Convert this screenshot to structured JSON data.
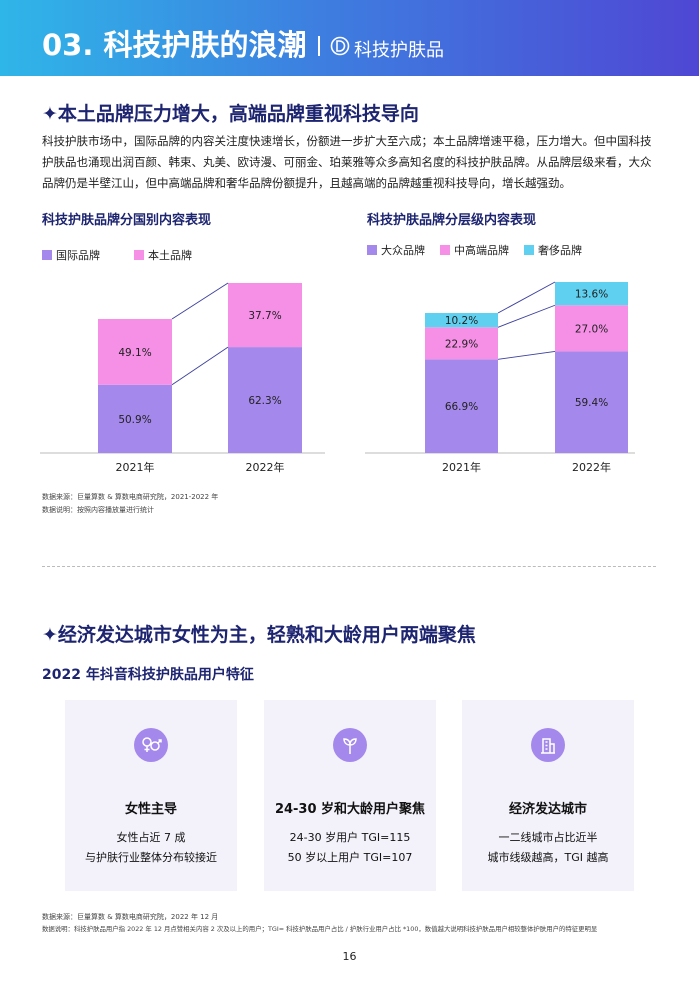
{
  "header": {
    "title": "03. 科技护肤的浪潮",
    "brand": "科技护肤品"
  },
  "section1": {
    "title": "✦本土品牌压力增大，高端品牌重视科技导向",
    "paragraph": "科技护肤市场中，国际品牌的内容关注度快速增长，份额进一步扩大至六成；本土品牌增速平稳，压力增大。但中国科技护肤品也涌现出润百颜、韩束、丸美、欧诗漫、可丽金、珀莱雅等众多高知名度的科技护肤品牌。从品牌层级来看，大众品牌仍是半壁江山，但中高端品牌和奢华品牌份额提升，且越高端的品牌越重视科技导向，增长越强劲。"
  },
  "chart_data": [
    {
      "type": "stacked_bar",
      "title": "科技护肤品牌分国别内容表现",
      "categories": [
        "2021年",
        "2022年"
      ],
      "series": [
        {
          "name": "国际品牌",
          "color": "#a488ec",
          "values": [
            50.9,
            62.3
          ],
          "value_labels": [
            "50.9%",
            "62.3%"
          ]
        },
        {
          "name": "本土品牌",
          "color": "#f590e6",
          "values": [
            49.1,
            37.7
          ],
          "value_labels": [
            "49.1%",
            "37.7%"
          ]
        }
      ]
    },
    {
      "type": "stacked_bar",
      "title": "科技护肤品牌分层级内容表现",
      "categories": [
        "2021年",
        "2022年"
      ],
      "series": [
        {
          "name": "大众品牌",
          "color": "#a488ec",
          "values": [
            66.9,
            59.4
          ],
          "value_labels": [
            "66.9%",
            "59.4%"
          ]
        },
        {
          "name": "中高端品牌",
          "color": "#f590e6",
          "values": [
            22.9,
            27
          ],
          "value_labels": [
            "22.9%",
            "27.0%"
          ]
        },
        {
          "name": "奢侈品牌",
          "color": "#5fd0f0",
          "values": [
            10.2,
            13.6
          ],
          "value_labels": [
            "10.2%",
            "13.6%"
          ]
        }
      ]
    }
  ],
  "notes1": [
    "数据来源：巨量算数 & 算数电商研究院，2021-2022 年",
    "数据说明：按照内容播放量进行统计"
  ],
  "section2": {
    "title": "✦经济发达城市女性为主，轻熟和大龄用户两端聚焦",
    "subtitle": "2022 年抖音科技护肤品用户特征",
    "cards": [
      {
        "title": "女性主导",
        "lines": [
          "女性占近 7 成",
          "与护肤行业整体分布较接近"
        ]
      },
      {
        "title": "24-30 岁和大龄用户聚焦",
        "lines": [
          "24-30 岁用户 TGI=115",
          "50 岁以上用户 TGI=107"
        ]
      },
      {
        "title": "经济发达城市",
        "lines": [
          "一二线城市占比近半",
          "城市线级越高，TGI 越高"
        ]
      }
    ]
  },
  "notes2": [
    "数据来源：巨量算数 & 算数电商研究院，2022 年 12 月",
    "数据说明：科技护肤品用户指 2022 年 12 月点赞相关内容 2 次及以上的用户；TGI= 科技护肤品用户占比 / 护肤行业用户占比 *100，数值越大说明科技护肤品用户相较整体护肤用户的特征更明显"
  ],
  "page_number": "16"
}
